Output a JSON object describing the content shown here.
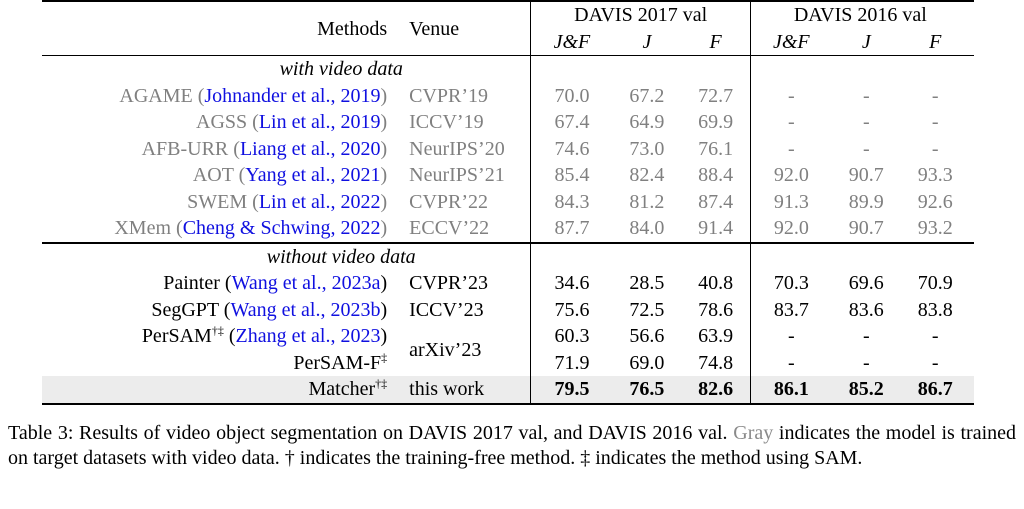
{
  "table": {
    "headers": {
      "methods": "Methods",
      "venue": "Venue",
      "group_2017": "DAVIS 2017 val",
      "group_2016": "DAVIS 2016 val",
      "metrics": [
        "J&F",
        "J",
        "F",
        "J&F",
        "J",
        "F"
      ]
    },
    "section_with": "with video data",
    "section_without": "without video data",
    "rows_with": [
      {
        "name": "AGAME",
        "cite": "Johnander et al., 2019",
        "venue": "CVPR’19",
        "v": [
          "70.0",
          "67.2",
          "72.7",
          "-",
          "-",
          "-"
        ]
      },
      {
        "name": "AGSS",
        "cite": "Lin et al., 2019",
        "venue": "ICCV’19",
        "v": [
          "67.4",
          "64.9",
          "69.9",
          "-",
          "-",
          "-"
        ]
      },
      {
        "name": "AFB-URR",
        "cite": "Liang et al., 2020",
        "venue": "NeurIPS’20",
        "v": [
          "74.6",
          "73.0",
          "76.1",
          "-",
          "-",
          "-"
        ]
      },
      {
        "name": "AOT",
        "cite": "Yang et al., 2021",
        "venue": "NeurIPS’21",
        "v": [
          "85.4",
          "82.4",
          "88.4",
          "92.0",
          "90.7",
          "93.3"
        ]
      },
      {
        "name": "SWEM",
        "cite": "Lin et al., 2022",
        "venue": "CVPR’22",
        "v": [
          "84.3",
          "81.2",
          "87.4",
          "91.3",
          "89.9",
          "92.6"
        ]
      },
      {
        "name": "XMem",
        "cite": "Cheng & Schwing, 2022",
        "venue": "ECCV’22",
        "v": [
          "87.7",
          "84.0",
          "91.4",
          "92.0",
          "90.7",
          "93.2"
        ]
      }
    ],
    "rows_without": [
      {
        "name": "Painter",
        "cite": "Wang et al., 2023a",
        "venue": "CVPR’23",
        "v": [
          "34.6",
          "28.5",
          "40.8",
          "70.3",
          "69.6",
          "70.9"
        ]
      },
      {
        "name": "SegGPT",
        "cite": "Wang et al., 2023b",
        "venue": "ICCV’23",
        "v": [
          "75.6",
          "72.5",
          "78.6",
          "83.7",
          "83.6",
          "83.8"
        ]
      }
    ],
    "persam": {
      "name": "PerSAM",
      "sup": "†‡",
      "cite": "Zhang et al., 2023",
      "venue": "arXiv’23",
      "v": [
        "60.3",
        "56.6",
        "63.9",
        "-",
        "-",
        "-"
      ]
    },
    "persam_f": {
      "name": "PerSAM-F",
      "sup": "‡",
      "v": [
        "71.9",
        "69.0",
        "74.8",
        "-",
        "-",
        "-"
      ]
    },
    "matcher": {
      "name": "Matcher",
      "sup": "†‡",
      "venue": "this work",
      "v": [
        "79.5",
        "76.5",
        "82.6",
        "86.1",
        "85.2",
        "86.7"
      ]
    }
  },
  "caption": {
    "lead": "Table 3: Results of video object segmentation on DAVIS 2017 val, and DAVIS 2016 val.",
    "gray_word": "Gray",
    "rest": "indicates the model is trained on target datasets with video data. † indicates the training-free method. ‡ indicates the method using SAM."
  }
}
